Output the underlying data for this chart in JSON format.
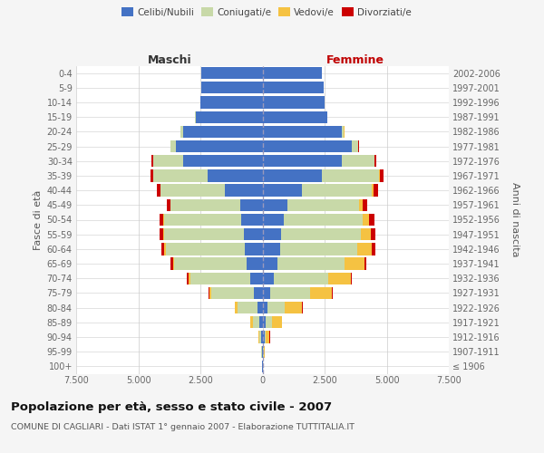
{
  "age_groups": [
    "100+",
    "95-99",
    "90-94",
    "85-89",
    "80-84",
    "75-79",
    "70-74",
    "65-69",
    "60-64",
    "55-59",
    "50-54",
    "45-49",
    "40-44",
    "35-39",
    "30-34",
    "25-29",
    "20-24",
    "15-19",
    "10-14",
    "5-9",
    "0-4"
  ],
  "birth_years": [
    "≤ 1906",
    "1907-1911",
    "1912-1916",
    "1917-1921",
    "1922-1926",
    "1927-1931",
    "1932-1936",
    "1937-1941",
    "1942-1946",
    "1947-1951",
    "1952-1956",
    "1957-1961",
    "1962-1966",
    "1967-1971",
    "1972-1976",
    "1977-1981",
    "1982-1986",
    "1987-1991",
    "1992-1996",
    "1997-2001",
    "2002-2006"
  ],
  "male_celibe": [
    10,
    20,
    60,
    120,
    200,
    350,
    500,
    650,
    700,
    750,
    850,
    900,
    1500,
    2200,
    3200,
    3500,
    3200,
    2700,
    2500,
    2450,
    2450
  ],
  "male_coniugato": [
    5,
    20,
    80,
    280,
    800,
    1700,
    2400,
    2900,
    3200,
    3200,
    3100,
    2800,
    2600,
    2200,
    1200,
    200,
    100,
    30,
    10,
    5,
    5
  ],
  "male_vedovo": [
    2,
    5,
    30,
    80,
    100,
    100,
    80,
    60,
    50,
    40,
    30,
    20,
    15,
    10,
    5,
    3,
    2,
    1,
    1,
    1,
    1
  ],
  "male_divorziato": [
    1,
    2,
    5,
    10,
    15,
    30,
    50,
    80,
    120,
    150,
    160,
    130,
    150,
    100,
    50,
    10,
    5,
    2,
    1,
    1,
    1
  ],
  "female_nubile": [
    10,
    30,
    80,
    120,
    200,
    300,
    450,
    600,
    700,
    750,
    850,
    1000,
    1600,
    2400,
    3200,
    3600,
    3200,
    2600,
    2500,
    2450,
    2400
  ],
  "female_coniugata": [
    3,
    15,
    60,
    250,
    700,
    1600,
    2200,
    2700,
    3100,
    3200,
    3200,
    2900,
    2800,
    2300,
    1300,
    250,
    80,
    20,
    5,
    3,
    2
  ],
  "female_vedova": [
    5,
    30,
    150,
    400,
    700,
    900,
    900,
    800,
    600,
    400,
    250,
    150,
    80,
    40,
    20,
    10,
    5,
    2,
    1,
    1,
    1
  ],
  "female_divorziata": [
    1,
    2,
    5,
    15,
    20,
    30,
    60,
    80,
    130,
    200,
    200,
    170,
    180,
    120,
    60,
    15,
    5,
    2,
    1,
    1,
    1
  ],
  "colors": {
    "celibe": "#4472c4",
    "coniugato": "#c8d9a8",
    "vedovo": "#f5c242",
    "divorziato": "#cc0000"
  },
  "xlim": 7500,
  "title": "Popolazione per età, sesso e stato civile - 2007",
  "subtitle": "COMUNE DI CAGLIARI - Dati ISTAT 1° gennaio 2007 - Elaborazione TUTTITALIA.IT",
  "ylabel_left": "Fasce di età",
  "ylabel_right": "Anni di nascita",
  "header_left": "Maschi",
  "header_right": "Femmine",
  "legend_labels": [
    "Celibi/Nubili",
    "Coniugati/e",
    "Vedovi/e",
    "Divorziati/e"
  ],
  "background_color": "#f5f5f5",
  "plot_bg": "#ffffff",
  "grid_color": "#cccccc"
}
